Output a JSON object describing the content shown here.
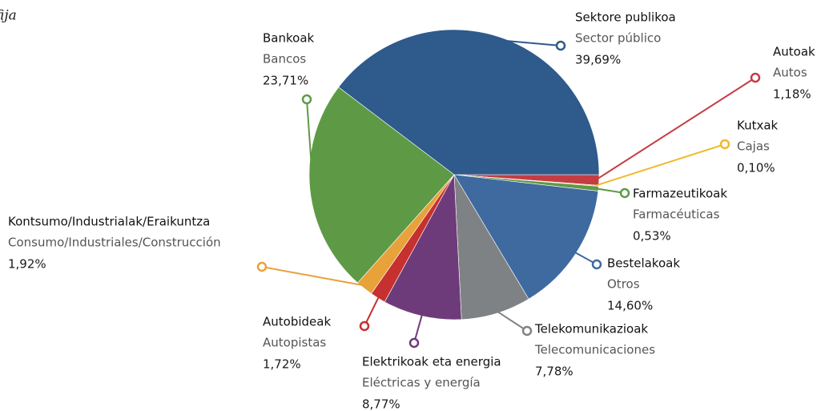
{
  "chart_data": {
    "type": "pie",
    "title": "fija",
    "categories": [
      "Autoak",
      "Kutxak",
      "Farmazeutikoak",
      "Bestelakoak",
      "Telekomunikazioak",
      "Elektrikoak eta energia",
      "Autobideak",
      "Kontsumo/Industrialak/Eraikuntza",
      "Bankoak",
      "Sektore publikoa"
    ],
    "subcategories": [
      "Autos",
      "Cajas",
      "Farmacéuticas",
      "Otros",
      "Telecomunicaciones",
      "Eléctricas y energía",
      "Autopistas",
      "Consumo/Industriales/Construcción",
      "Bancos",
      "Sector público"
    ],
    "values": [
      1.18,
      0.1,
      0.53,
      14.6,
      7.78,
      8.77,
      1.72,
      1.92,
      23.71,
      39.69
    ],
    "value_labels": [
      "1,18%",
      "0,10%",
      "0,53%",
      "14,60%",
      "7,78%",
      "8,77%",
      "1,72%",
      "1,92%",
      "23,71%",
      "39,69%"
    ],
    "colors": [
      "#c43d43",
      "#f2b82a",
      "#5f9a45",
      "#3f6a9f",
      "#7f8284",
      "#6e3b7a",
      "#c6302f",
      "#e8a23a",
      "#5e9a46",
      "#2e5a8c"
    ]
  }
}
